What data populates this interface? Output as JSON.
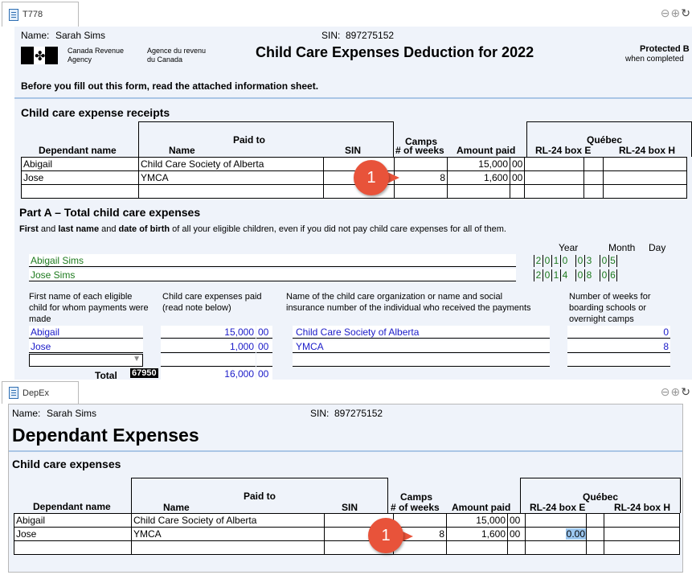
{
  "top": {
    "tab": "T778",
    "name_label": "Name:",
    "name_value": "Sarah Sims",
    "sin_label": "SIN:",
    "sin_value": "897275152",
    "cra_en_1": "Canada Revenue",
    "cra_en_2": "Agency",
    "cra_fr_1": "Agence du revenu",
    "cra_fr_2": "du Canada",
    "title": "Child Care Expenses Deduction for 2022",
    "protected_1": "Protected B",
    "protected_2": "when completed",
    "instruction": "Before you fill out this form, read the attached information sheet.",
    "section": "Child care expense receipts"
  },
  "receipts": {
    "h_dep": "Dependant name",
    "h_paid": "Paid to",
    "h_name": "Name",
    "h_sin": "SIN",
    "h_camps": "Camps",
    "h_weeks": "# of weeks",
    "h_amount": "Amount paid",
    "h_quebec": "Québec",
    "h_rle": "RL-24 box E",
    "h_rlh": "RL-24 box H",
    "rows": [
      {
        "dep": "Abigail",
        "name": "Child Care Society of Alberta",
        "weeks": "",
        "amount": "15,000",
        "cents": "00"
      },
      {
        "dep": "Jose",
        "name": "YMCA",
        "weeks": "8",
        "amount": "1,600",
        "cents": "00"
      }
    ]
  },
  "partA": {
    "title": "Part A – Total child care expenses",
    "desc_1": "First",
    "desc_2": " and ",
    "desc_3": "last name",
    "desc_4": " and ",
    "desc_5": "date of birth",
    "desc_6": " of all your eligible children, even if you did not pay child care expenses for all of them.",
    "year": "Year",
    "month": "Month",
    "day": "Day",
    "children": [
      {
        "name": "Abigail Sims",
        "dob": [
          "2",
          "0",
          "1",
          "0",
          "0",
          "3",
          "0",
          "5"
        ]
      },
      {
        "name": "Jose Sims",
        "dob": [
          "2",
          "0",
          "1",
          "4",
          "0",
          "8",
          "0",
          "6"
        ]
      }
    ],
    "col1": "First name of each eligible child for whom payments were made",
    "col2": "Child care expenses paid (read note below)",
    "col2_note": "note",
    "col3": "Name of the child care organization or name and social insurance number of the individual who received the payments",
    "col4": "Number of weeks for boarding schools or overnight camps",
    "rows": [
      {
        "child": "Abigail",
        "amount": "15,000",
        "cents": "00",
        "org": "Child Care Society of Alberta",
        "weeks": "0"
      },
      {
        "child": "Jose",
        "amount": "1,000",
        "cents": "00",
        "org": "YMCA",
        "weeks": "8"
      }
    ],
    "total_label": "Total",
    "total_code": "67950",
    "total_amount": "16,000",
    "total_cents": "00"
  },
  "bottom": {
    "tab": "DepEx",
    "name_label": "Name:",
    "name_value": "Sarah Sims",
    "sin_label": "SIN:",
    "sin_value": "897275152",
    "title": "Dependant Expenses",
    "section": "Child care expenses",
    "h_dep": "Dependant name",
    "h_paid": "Paid to",
    "h_name": "Name",
    "h_sin": "SIN",
    "h_camps": "Camps",
    "h_weeks": "# of weeks",
    "h_amount": "Amount paid",
    "h_quebec": "Québec",
    "h_rle": "RL-24 box E",
    "h_rlh": "RL-24 box H",
    "rows": [
      {
        "dep": "Abigail",
        "name": "Child Care Society of Alberta",
        "weeks": "",
        "amount": "15,000",
        "cents": "00",
        "rle": ""
      },
      {
        "dep": "Jose",
        "name": "YMCA",
        "weeks": "8",
        "amount": "1,600",
        "cents": "00",
        "rle": "0.00"
      }
    ]
  },
  "markers": {
    "one": "1"
  },
  "colors": {
    "accent": "#e8533a",
    "form_bg": "#eff3fa",
    "entry_blue": "#1a1ac8",
    "entry_green": "#1d7a1d"
  },
  "icons": [
    "document-icon",
    "back-icon",
    "forward-icon",
    "refresh-icon",
    "dropdown-icon"
  ]
}
